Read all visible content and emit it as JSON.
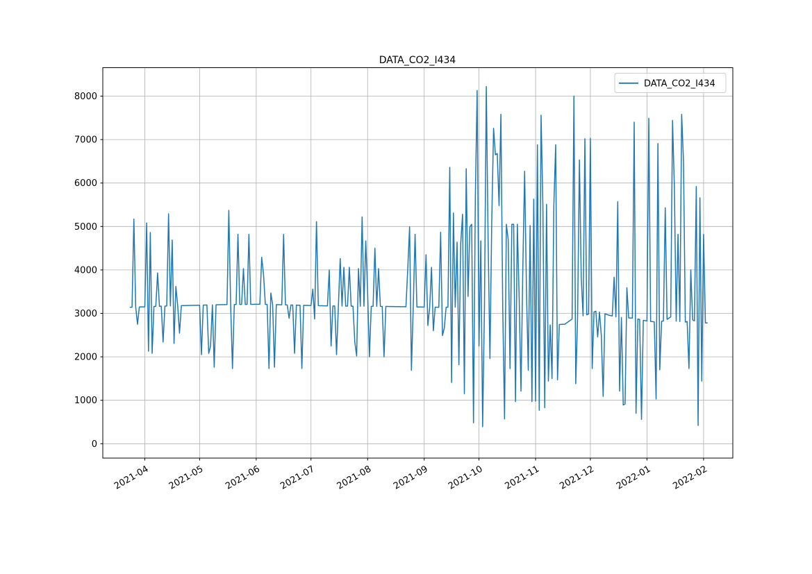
{
  "chart_data": {
    "type": "line",
    "title": "DATA_CO2_I434",
    "xlabel": "",
    "ylabel": "",
    "grid": true,
    "background": "#ffffff",
    "line_color": "#1f77b4",
    "grid_color": "#b0b0b0",
    "spine_color": "#000000",
    "legend": {
      "position": "upper right",
      "label": "DATA_CO2_I434",
      "line_color": "#1f77b4"
    },
    "x_ticks": {
      "labels": [
        "2021-04",
        "2021-05",
        "2021-06",
        "2021-07",
        "2021-08",
        "2021-09",
        "2021-10",
        "2021-11",
        "2021-12",
        "2022-01",
        "2022-02"
      ],
      "days": [
        8,
        38,
        69,
        99,
        130,
        161,
        191,
        222,
        252,
        283,
        314
      ],
      "rotation_deg": -30
    },
    "y_ticks": [
      0,
      1000,
      2000,
      3000,
      4000,
      5000,
      6000,
      7000,
      8000
    ],
    "ylim": [
      -350,
      8660
    ],
    "series": {
      "name": "DATA_CO2_I434",
      "x_unit": "days since 2021-03-24",
      "start_day": 0,
      "end_day": 316,
      "baseline_anchors": [
        [
          0,
          3140
        ],
        [
          20,
          3170
        ],
        [
          50,
          3200
        ],
        [
          70,
          3210
        ],
        [
          90,
          3190
        ],
        [
          110,
          3170
        ],
        [
          140,
          3160
        ],
        [
          170,
          3140
        ],
        [
          200,
          3150
        ],
        [
          214,
          3150
        ],
        [
          216,
          2950
        ],
        [
          221,
          2900
        ],
        [
          223,
          2780
        ],
        [
          228,
          2730
        ],
        [
          238,
          2750
        ],
        [
          243,
          2900
        ],
        [
          249,
          2950
        ],
        [
          252,
          3000
        ],
        [
          255,
          3050
        ],
        [
          258,
          3020
        ],
        [
          262,
          2960
        ],
        [
          266,
          2920
        ],
        [
          270,
          2900
        ],
        [
          276,
          2890
        ],
        [
          281,
          2840
        ],
        [
          284,
          2820
        ],
        [
          288,
          2800
        ],
        [
          293,
          2830
        ],
        [
          296,
          2920
        ],
        [
          299,
          2820
        ],
        [
          304,
          2800
        ],
        [
          308,
          2850
        ],
        [
          311,
          2780
        ],
        [
          316,
          2780
        ]
      ],
      "spikes": [
        [
          2,
          5170
        ],
        [
          4,
          2750
        ],
        [
          9,
          5080
        ],
        [
          10,
          2130
        ],
        [
          11,
          4860
        ],
        [
          12,
          2080
        ],
        [
          15,
          3930
        ],
        [
          18,
          2340
        ],
        [
          21,
          5290
        ],
        [
          23,
          4690
        ],
        [
          24,
          2310
        ],
        [
          25,
          3620
        ],
        [
          27,
          2545
        ],
        [
          39,
          2050
        ],
        [
          43,
          2080
        ],
        [
          44,
          2250
        ],
        [
          46,
          1760
        ],
        [
          54,
          5370
        ],
        [
          56,
          1730
        ],
        [
          59,
          4820
        ],
        [
          62,
          4030
        ],
        [
          65,
          4820
        ],
        [
          72,
          4290
        ],
        [
          73,
          3900
        ],
        [
          76,
          1730
        ],
        [
          77,
          3470
        ],
        [
          79,
          1760
        ],
        [
          84,
          4820
        ],
        [
          87,
          2890
        ],
        [
          90,
          2080
        ],
        [
          94,
          1730
        ],
        [
          100,
          3560
        ],
        [
          101,
          2870
        ],
        [
          102,
          5110
        ],
        [
          109,
          4000
        ],
        [
          110,
          2250
        ],
        [
          113,
          2050
        ],
        [
          115,
          4260
        ],
        [
          117,
          4060
        ],
        [
          120,
          4060
        ],
        [
          123,
          2340
        ],
        [
          124,
          2020
        ],
        [
          125,
          4030
        ],
        [
          127,
          5220
        ],
        [
          129,
          4670
        ],
        [
          130,
          3500
        ],
        [
          131,
          2000
        ],
        [
          134,
          4500
        ],
        [
          136,
          4030
        ],
        [
          139,
          2000
        ],
        [
          152,
          4030
        ],
        [
          153,
          4990
        ],
        [
          154,
          1690
        ],
        [
          156,
          4820
        ],
        [
          162,
          4350
        ],
        [
          163,
          2720
        ],
        [
          165,
          4060
        ],
        [
          166,
          2600
        ],
        [
          170,
          4870
        ],
        [
          171,
          2490
        ],
        [
          172,
          2660
        ],
        [
          175,
          6360
        ],
        [
          176,
          1410
        ],
        [
          177,
          5310
        ],
        [
          179,
          4640
        ],
        [
          180,
          1820
        ],
        [
          181,
          4610
        ],
        [
          182,
          5280
        ],
        [
          183,
          1150
        ],
        [
          184,
          6330
        ],
        [
          185,
          3390
        ],
        [
          186,
          4990
        ],
        [
          187,
          5050
        ],
        [
          188,
          480
        ],
        [
          189,
          5660
        ],
        [
          190,
          8130
        ],
        [
          191,
          2250
        ],
        [
          192,
          4670
        ],
        [
          193,
          390
        ],
        [
          195,
          8220
        ],
        [
          196,
          4700
        ],
        [
          197,
          1960
        ],
        [
          198,
          5140
        ],
        [
          199,
          7260
        ],
        [
          200,
          6650
        ],
        [
          201,
          6680
        ],
        [
          202,
          5480
        ],
        [
          203,
          7580
        ],
        [
          205,
          570
        ],
        [
          206,
          5050
        ],
        [
          207,
          4700
        ],
        [
          208,
          1730
        ],
        [
          209,
          5050
        ],
        [
          210,
          5050
        ],
        [
          211,
          970
        ],
        [
          212,
          5050
        ],
        [
          213,
          3390
        ],
        [
          214,
          1210
        ],
        [
          215,
          4000
        ],
        [
          216,
          6270
        ],
        [
          217,
          3530
        ],
        [
          218,
          1690
        ],
        [
          219,
          5020
        ],
        [
          220,
          970
        ],
        [
          221,
          5630
        ],
        [
          222,
          980
        ],
        [
          223,
          6880
        ],
        [
          224,
          770
        ],
        [
          225,
          7560
        ],
        [
          226,
          5470
        ],
        [
          227,
          830
        ],
        [
          228,
          5510
        ],
        [
          229,
          1440
        ],
        [
          231,
          1500
        ],
        [
          232,
          5480
        ],
        [
          233,
          6880
        ],
        [
          234,
          1470
        ],
        [
          243,
          8000
        ],
        [
          244,
          1380
        ],
        [
          246,
          6530
        ],
        [
          247,
          3830
        ],
        [
          249,
          7020
        ],
        [
          252,
          7030
        ],
        [
          253,
          1730
        ],
        [
          256,
          2460
        ],
        [
          258,
          2490
        ],
        [
          259,
          1090
        ],
        [
          265,
          3830
        ],
        [
          267,
          5570
        ],
        [
          268,
          1210
        ],
        [
          270,
          890
        ],
        [
          271,
          915
        ],
        [
          272,
          3590
        ],
        [
          276,
          7400
        ],
        [
          277,
          700
        ],
        [
          280,
          560
        ],
        [
          284,
          7490
        ],
        [
          288,
          1030
        ],
        [
          289,
          6910
        ],
        [
          290,
          1700
        ],
        [
          293,
          5430
        ],
        [
          297,
          7440
        ],
        [
          298,
          5920
        ],
        [
          300,
          4820
        ],
        [
          302,
          7580
        ],
        [
          303,
          6500
        ],
        [
          306,
          1730
        ],
        [
          307,
          4000
        ],
        [
          310,
          5920
        ],
        [
          311,
          420
        ],
        [
          312,
          5660
        ],
        [
          313,
          1440
        ],
        [
          314,
          4820
        ]
      ]
    }
  }
}
